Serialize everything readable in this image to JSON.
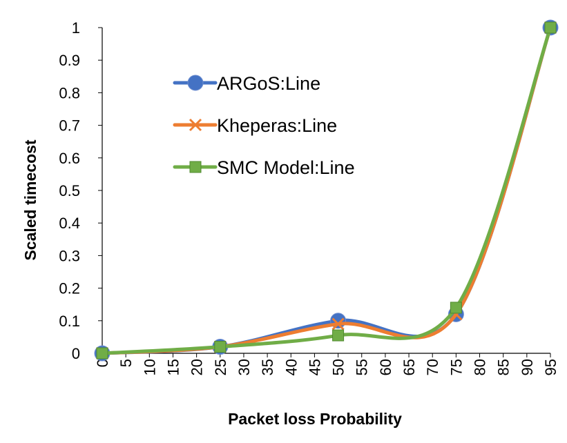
{
  "chart_data": {
    "type": "line",
    "title": "",
    "xlabel": "Packet loss Probability",
    "ylabel": "Scaled  timecost",
    "x_ticks": [
      "0",
      "5",
      "10",
      "15",
      "20",
      "25",
      "30",
      "35",
      "40",
      "45",
      "50",
      "55",
      "60",
      "65",
      "70",
      "75",
      "80",
      "85",
      "90",
      "95"
    ],
    "y_ticks": [
      "0",
      "0.1",
      "0.2",
      "0.3",
      "0.4",
      "0.5",
      "0.6",
      "0.7",
      "0.8",
      "0.9",
      "1"
    ],
    "xlim": [
      0,
      95
    ],
    "ylim": [
      0,
      1
    ],
    "grid": false,
    "legend_position": "top-left inside",
    "series": [
      {
        "name": "ARGoS:Line",
        "color": "#4472C4",
        "marker": "circle",
        "smooth": true,
        "x": [
          0,
          25,
          50,
          75,
          95
        ],
        "y": [
          0,
          0.02,
          0.1,
          0.12,
          1
        ]
      },
      {
        "name": "Kheperas:Line",
        "color": "#ED7D31",
        "marker": "x",
        "smooth": true,
        "x": [
          0,
          25,
          50,
          75,
          95
        ],
        "y": [
          0,
          0.02,
          0.09,
          0.12,
          1
        ]
      },
      {
        "name": "SMC Model:Line",
        "color": "#70AD47",
        "marker": "square",
        "smooth": true,
        "x": [
          0,
          25,
          50,
          75,
          95
        ],
        "y": [
          0,
          0.02,
          0.055,
          0.14,
          1
        ]
      }
    ]
  }
}
